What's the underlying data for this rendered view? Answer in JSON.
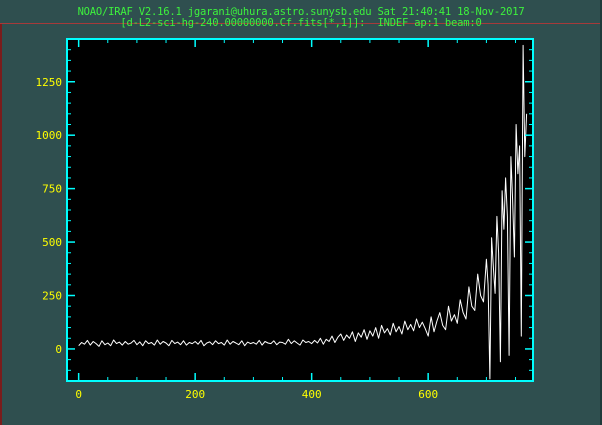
{
  "window": {
    "title_line1": "NOAO/IRAF V2.16.1 jgarani@uhura.astro.sunysb.edu Sat 21:40:41 18-Nov-2017",
    "title_line2": "[d-L2-sci-hg-240.00000000.Cf.fits[*,1]]:  INDEF ap:1 beam:0"
  },
  "colors": {
    "background": "#2f4f4f",
    "plot_background": "#000000",
    "axis_frame": "#00ffff",
    "tick_labels": "#ffff00",
    "title_text": "#3df23d",
    "data_line": "#ffffff"
  },
  "chart_data": {
    "type": "line",
    "title": "",
    "xlabel": "",
    "ylabel": "",
    "xlim": [
      -20,
      780
    ],
    "ylim": [
      -150,
      1450
    ],
    "xticks": [
      0,
      200,
      400,
      600
    ],
    "yticks": [
      0,
      250,
      500,
      750,
      1000,
      1250
    ],
    "xtick_labels": [
      "0",
      "200",
      "400",
      "600"
    ],
    "ytick_labels": [
      "0",
      "250",
      "500",
      "750",
      "1000",
      "1250"
    ],
    "grid": false,
    "series": [
      {
        "color": "#ffffff",
        "x": [
          0,
          5,
          10,
          15,
          20,
          25,
          30,
          35,
          40,
          45,
          50,
          55,
          60,
          65,
          70,
          75,
          80,
          85,
          90,
          95,
          100,
          105,
          110,
          115,
          120,
          125,
          130,
          135,
          140,
          145,
          150,
          155,
          160,
          165,
          170,
          175,
          180,
          185,
          190,
          195,
          200,
          205,
          210,
          215,
          220,
          225,
          230,
          235,
          240,
          245,
          250,
          255,
          260,
          265,
          270,
          275,
          280,
          285,
          290,
          295,
          300,
          305,
          310,
          315,
          320,
          325,
          330,
          335,
          340,
          345,
          350,
          355,
          360,
          365,
          370,
          375,
          380,
          385,
          390,
          395,
          400,
          405,
          410,
          415,
          420,
          425,
          430,
          435,
          440,
          445,
          450,
          455,
          460,
          465,
          470,
          475,
          480,
          485,
          490,
          495,
          500,
          505,
          510,
          515,
          520,
          525,
          530,
          535,
          540,
          545,
          550,
          555,
          560,
          565,
          570,
          575,
          580,
          585,
          590,
          595,
          600,
          605,
          610,
          615,
          620,
          625,
          630,
          635,
          640,
          645,
          650,
          655,
          660,
          665,
          670,
          675,
          680,
          685,
          690,
          695,
          700,
          703,
          706,
          709,
          712,
          715,
          718,
          721,
          724,
          727,
          730,
          733,
          736,
          739,
          742,
          745,
          748,
          751,
          754,
          757,
          760,
          763,
          766,
          769
        ],
        "y": [
          15,
          30,
          22,
          40,
          18,
          35,
          25,
          12,
          38,
          20,
          28,
          15,
          42,
          25,
          32,
          18,
          35,
          22,
          28,
          40,
          20,
          33,
          15,
          38,
          25,
          30,
          18,
          42,
          22,
          35,
          28,
          15,
          40,
          25,
          32,
          20,
          38,
          18,
          30,
          25,
          35,
          22,
          40,
          15,
          28,
          33,
          20,
          38,
          25,
          30,
          18,
          42,
          22,
          35,
          28,
          20,
          38,
          15,
          32,
          25,
          30,
          22,
          40,
          18,
          35,
          28,
          25,
          38,
          20,
          32,
          30,
          22,
          45,
          25,
          38,
          28,
          18,
          42,
          30,
          35,
          25,
          40,
          28,
          50,
          22,
          45,
          35,
          60,
          30,
          55,
          70,
          40,
          65,
          50,
          80,
          35,
          75,
          55,
          90,
          45,
          85,
          60,
          100,
          50,
          110,
          75,
          95,
          65,
          120,
          80,
          105,
          70,
          130,
          90,
          115,
          85,
          140,
          100,
          125,
          95,
          60,
          150,
          80,
          130,
          170,
          110,
          90,
          200,
          130,
          160,
          120,
          230,
          170,
          140,
          290,
          200,
          180,
          350,
          250,
          220,
          420,
          300,
          -140,
          520,
          380,
          260,
          620,
          450,
          -60,
          740,
          560,
          800,
          620,
          -30,
          900,
          700,
          430,
          1050,
          820,
          950,
          60,
          1420,
          900,
          1100
        ]
      }
    ]
  }
}
